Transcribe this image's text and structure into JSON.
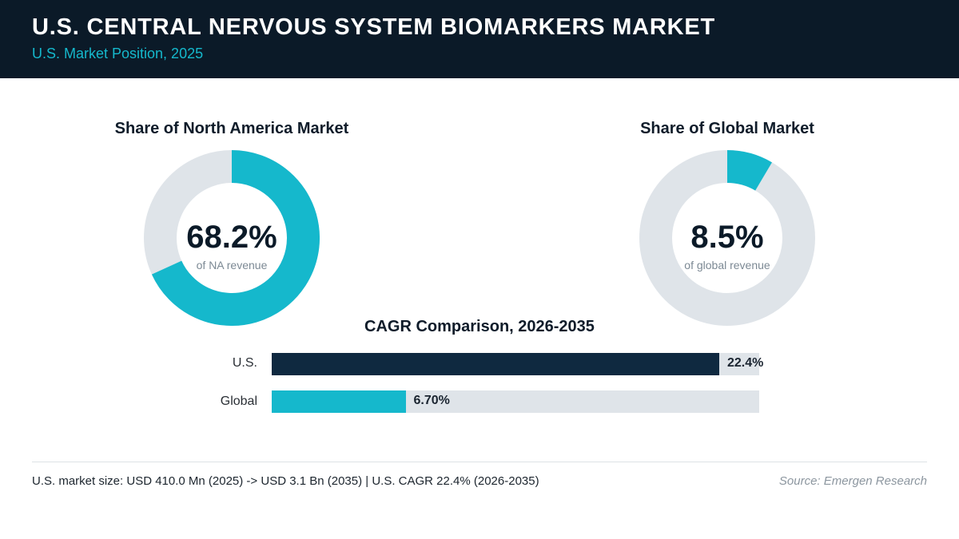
{
  "header": {
    "title": "U.S. CENTRAL NERVOUS SYSTEM BIOMARKERS MARKET",
    "subtitle": "U.S. Market Position, 2025"
  },
  "colors": {
    "header_bg": "#0b1a28",
    "accent": "#15b8cc",
    "track": "#dfe4e9",
    "us_bar": "#0f2940",
    "global_bar": "#15b8cc"
  },
  "chart_data": [
    {
      "type": "pie",
      "variant": "donut",
      "title": "Share of North America Market",
      "value": 68.2,
      "value_label": "68.2%",
      "caption": "of NA revenue",
      "total": 100
    },
    {
      "type": "pie",
      "variant": "donut",
      "title": "Share of Global Market",
      "value": 8.5,
      "value_label": "8.5%",
      "caption": "of global revenue",
      "total": 100
    },
    {
      "type": "bar",
      "orientation": "horizontal",
      "title": "CAGR Comparison, 2026-2035",
      "categories": [
        "U.S.",
        "Global"
      ],
      "values": [
        22.4,
        6.7
      ],
      "value_labels": [
        "22.4%",
        "6.70%"
      ],
      "xlim": [
        0,
        24.4
      ]
    }
  ],
  "footer": {
    "note": "U.S. market size: USD 410.0 Mn (2025) -> USD 3.1 Bn (2035)  |  U.S. CAGR 22.4% (2026-2035)",
    "source": "Source: Emergen Research"
  }
}
